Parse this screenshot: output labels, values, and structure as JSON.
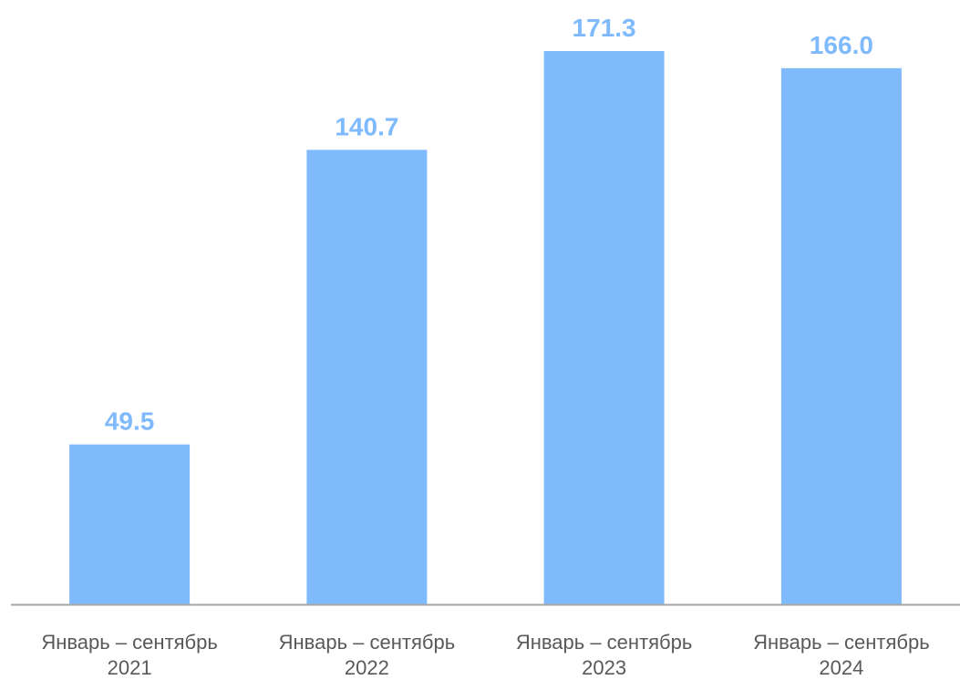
{
  "chart_data": {
    "type": "bar",
    "categories": [
      [
        "Январь – сентябрь",
        "2021"
      ],
      [
        "Январь – сентябрь",
        "2022"
      ],
      [
        "Январь – сентябрь",
        "2023"
      ],
      [
        "Январь – сентябрь",
        "2024"
      ]
    ],
    "values": [
      49.5,
      140.7,
      171.3,
      166.0
    ],
    "data_labels": [
      "49.5",
      "140.7",
      "171.3",
      "166.0"
    ],
    "title": "",
    "xlabel": "",
    "ylabel": "",
    "ylim": [
      0,
      171.3
    ],
    "grid": false,
    "legend": "none",
    "colors": {
      "bar": "#7FBAFC",
      "data_label": "#7FBAFC",
      "axis": "#A6A6A6",
      "tick_label": "#595959"
    }
  }
}
